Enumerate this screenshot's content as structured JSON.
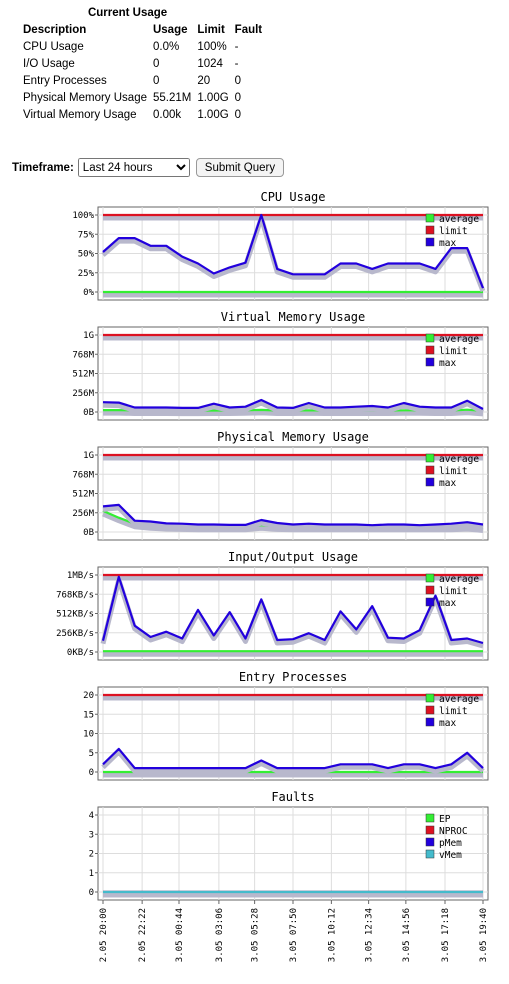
{
  "usage": {
    "caption": "Current Usage",
    "headers": [
      "Description",
      "Usage",
      "Limit",
      "Fault"
    ],
    "rows": [
      [
        "CPU Usage",
        "0.0%",
        "100%",
        "-"
      ],
      [
        "I/O Usage",
        "0",
        "1024",
        "-"
      ],
      [
        "Entry Processes",
        "0",
        "20",
        "0"
      ],
      [
        "Physical Memory Usage",
        "55.21M",
        "1.00G",
        "0"
      ],
      [
        "Virtual Memory Usage",
        "0.00k",
        "1.00G",
        "0"
      ]
    ]
  },
  "timeframe": {
    "label": "Timeframe:",
    "selected": "Last 24 hours",
    "submit_label": "Submit Query"
  },
  "colors": {
    "average": "#33ee33",
    "limit": "#dd1122",
    "max": "#2200dd",
    "vmem": "#44bbcc"
  },
  "x_labels": [
    "2.05 20:00",
    "2.05 22:22",
    "3.05 00:44",
    "3.05 03:06",
    "3.05 05:28",
    "3.05 07:50",
    "3.05 10:12",
    "3.05 12:34",
    "3.05 14:56",
    "3.05 17:18",
    "3.05 19:40"
  ],
  "chart_data": [
    {
      "type": "line",
      "title": "CPU Usage",
      "y_ticks": [
        "100%",
        "75%",
        "50%",
        "25%",
        "0%"
      ],
      "ylim": [
        0,
        100
      ],
      "x": [
        0,
        1,
        2,
        3,
        4,
        5,
        6,
        7,
        8,
        9,
        10,
        11,
        12,
        13,
        14,
        15,
        16,
        17,
        18,
        19,
        20,
        21,
        22,
        23,
        24
      ],
      "series": [
        {
          "name": "average",
          "values": [
            0,
            0,
            0,
            0,
            0,
            0,
            0,
            0,
            0,
            0,
            0,
            0,
            0,
            0,
            0,
            0,
            0,
            0,
            0,
            0,
            0,
            0,
            0,
            0,
            0
          ]
        },
        {
          "name": "limit",
          "values": [
            100,
            100,
            100,
            100,
            100,
            100,
            100,
            100,
            100,
            100,
            100,
            100,
            100,
            100,
            100,
            100,
            100,
            100,
            100,
            100,
            100,
            100,
            100,
            100,
            100
          ]
        },
        {
          "name": "max",
          "values": [
            52,
            70,
            70,
            60,
            60,
            46,
            37,
            24,
            32,
            38,
            100,
            30,
            23,
            23,
            23,
            37,
            37,
            30,
            37,
            37,
            37,
            30,
            57,
            57,
            5
          ]
        }
      ]
    },
    {
      "type": "line",
      "title": "Virtual Memory Usage",
      "y_ticks": [
        "1G",
        "768M",
        "512M",
        "256M",
        "0B"
      ],
      "ylim": [
        0,
        1024
      ],
      "x": [
        0,
        1,
        2,
        3,
        4,
        5,
        6,
        7,
        8,
        9,
        10,
        11,
        12,
        13,
        14,
        15,
        16,
        17,
        18,
        19,
        20,
        21,
        22,
        23,
        24
      ],
      "series": [
        {
          "name": "average",
          "values": [
            25,
            25,
            20,
            20,
            20,
            18,
            18,
            20,
            20,
            22,
            28,
            20,
            20,
            22,
            20,
            20,
            20,
            20,
            20,
            22,
            22,
            20,
            20,
            30,
            15
          ]
        },
        {
          "name": "limit",
          "values": [
            1024,
            1024,
            1024,
            1024,
            1024,
            1024,
            1024,
            1024,
            1024,
            1024,
            1024,
            1024,
            1024,
            1024,
            1024,
            1024,
            1024,
            1024,
            1024,
            1024,
            1024,
            1024,
            1024,
            1024,
            1024
          ]
        },
        {
          "name": "max",
          "values": [
            130,
            125,
            60,
            60,
            60,
            55,
            55,
            110,
            60,
            70,
            160,
            60,
            55,
            120,
            60,
            60,
            70,
            80,
            60,
            120,
            70,
            60,
            60,
            150,
            40
          ]
        }
      ]
    },
    {
      "type": "line",
      "title": "Physical Memory Usage",
      "y_ticks": [
        "1G",
        "768M",
        "512M",
        "256M",
        "0B"
      ],
      "ylim": [
        0,
        1024
      ],
      "x": [
        0,
        1,
        2,
        3,
        4,
        5,
        6,
        7,
        8,
        9,
        10,
        11,
        12,
        13,
        14,
        15,
        16,
        17,
        18,
        19,
        20,
        21,
        22,
        23,
        24
      ],
      "series": [
        {
          "name": "average",
          "values": [
            280,
            190,
            110,
            90,
            80,
            75,
            70,
            70,
            70,
            70,
            90,
            75,
            70,
            70,
            70,
            70,
            70,
            70,
            70,
            70,
            70,
            70,
            70,
            80,
            60
          ]
        },
        {
          "name": "limit",
          "values": [
            1024,
            1024,
            1024,
            1024,
            1024,
            1024,
            1024,
            1024,
            1024,
            1024,
            1024,
            1024,
            1024,
            1024,
            1024,
            1024,
            1024,
            1024,
            1024,
            1024,
            1024,
            1024,
            1024,
            1024,
            1024
          ]
        },
        {
          "name": "max",
          "values": [
            340,
            360,
            150,
            140,
            115,
            110,
            100,
            100,
            95,
            95,
            160,
            120,
            100,
            110,
            100,
            100,
            100,
            90,
            100,
            100,
            90,
            100,
            110,
            130,
            100
          ]
        }
      ]
    },
    {
      "type": "line",
      "title": "Input/Output Usage",
      "y_ticks": [
        "1MB/s",
        "768KB/s",
        "512KB/s",
        "256KB/s",
        "0KB/s"
      ],
      "ylim": [
        0,
        1024
      ],
      "x": [
        0,
        1,
        2,
        3,
        4,
        5,
        6,
        7,
        8,
        9,
        10,
        11,
        12,
        13,
        14,
        15,
        16,
        17,
        18,
        19,
        20,
        21,
        22,
        23,
        24
      ],
      "series": [
        {
          "name": "average",
          "values": [
            10,
            10,
            10,
            10,
            10,
            10,
            10,
            10,
            10,
            10,
            10,
            10,
            10,
            10,
            10,
            10,
            10,
            10,
            10,
            10,
            10,
            10,
            10,
            10,
            10
          ]
        },
        {
          "name": "limit",
          "values": [
            1024,
            1024,
            1024,
            1024,
            1024,
            1024,
            1024,
            1024,
            1024,
            1024,
            1024,
            1024,
            1024,
            1024,
            1024,
            1024,
            1024,
            1024,
            1024,
            1024,
            1024,
            1024,
            1024,
            1024,
            1024
          ]
        },
        {
          "name": "max",
          "values": [
            150,
            1000,
            350,
            200,
            270,
            180,
            560,
            220,
            530,
            180,
            700,
            160,
            170,
            250,
            160,
            540,
            300,
            610,
            190,
            180,
            290,
            750,
            160,
            180,
            120
          ]
        }
      ]
    },
    {
      "type": "line",
      "title": "Entry Processes",
      "y_ticks": [
        "20",
        "15",
        "10",
        "5",
        "0"
      ],
      "ylim": [
        0,
        20
      ],
      "x": [
        0,
        1,
        2,
        3,
        4,
        5,
        6,
        7,
        8,
        9,
        10,
        11,
        12,
        13,
        14,
        15,
        16,
        17,
        18,
        19,
        20,
        21,
        22,
        23,
        24
      ],
      "series": [
        {
          "name": "average",
          "values": [
            0,
            0,
            0,
            0,
            0,
            0,
            0,
            0,
            0,
            0,
            0,
            0,
            0,
            0,
            0,
            0,
            0,
            0,
            0,
            0,
            0,
            0,
            0,
            0,
            0
          ]
        },
        {
          "name": "limit",
          "values": [
            20,
            20,
            20,
            20,
            20,
            20,
            20,
            20,
            20,
            20,
            20,
            20,
            20,
            20,
            20,
            20,
            20,
            20,
            20,
            20,
            20,
            20,
            20,
            20,
            20
          ]
        },
        {
          "name": "max",
          "values": [
            2,
            6,
            1,
            1,
            1,
            1,
            1,
            1,
            1,
            1,
            3,
            1,
            1,
            1,
            1,
            2,
            2,
            2,
            1,
            2,
            2,
            1,
            2,
            5,
            1
          ]
        }
      ]
    },
    {
      "type": "line",
      "title": "Faults",
      "y_ticks": [
        "4",
        "3",
        "2",
        "1",
        "0"
      ],
      "ylim": [
        0,
        4
      ],
      "x": [
        0,
        1,
        2,
        3,
        4,
        5,
        6,
        7,
        8,
        9,
        10,
        11,
        12,
        13,
        14,
        15,
        16,
        17,
        18,
        19,
        20,
        21,
        22,
        23,
        24
      ],
      "series": [
        {
          "name": "EP",
          "values": [
            0,
            0,
            0,
            0,
            0,
            0,
            0,
            0,
            0,
            0,
            0,
            0,
            0,
            0,
            0,
            0,
            0,
            0,
            0,
            0,
            0,
            0,
            0,
            0,
            0
          ]
        },
        {
          "name": "NPROC",
          "values": [
            0,
            0,
            0,
            0,
            0,
            0,
            0,
            0,
            0,
            0,
            0,
            0,
            0,
            0,
            0,
            0,
            0,
            0,
            0,
            0,
            0,
            0,
            0,
            0,
            0
          ]
        },
        {
          "name": "pMem",
          "values": [
            0,
            0,
            0,
            0,
            0,
            0,
            0,
            0,
            0,
            0,
            0,
            0,
            0,
            0,
            0,
            0,
            0,
            0,
            0,
            0,
            0,
            0,
            0,
            0,
            0
          ]
        },
        {
          "name": "vMem",
          "values": [
            0,
            0,
            0,
            0,
            0,
            0,
            0,
            0,
            0,
            0,
            0,
            0,
            0,
            0,
            0,
            0,
            0,
            0,
            0,
            0,
            0,
            0,
            0,
            0,
            0
          ]
        }
      ]
    }
  ]
}
